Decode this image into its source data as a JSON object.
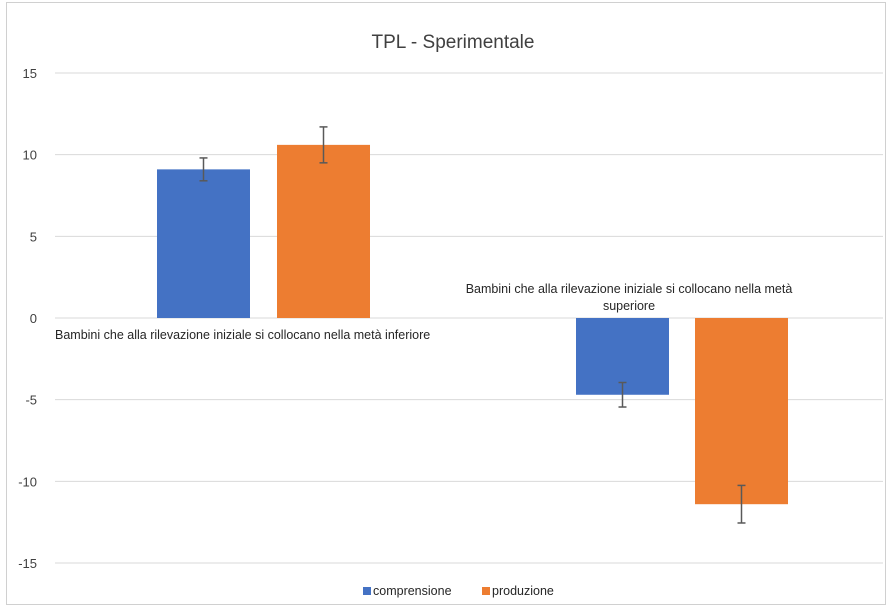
{
  "chart_data": {
    "type": "bar",
    "title": "TPL - Sperimentale",
    "xlabel": "",
    "ylabel": "",
    "ylim": [
      -15,
      15
    ],
    "y_ticks": [
      15,
      10,
      5,
      0,
      -5,
      -10,
      -15
    ],
    "grid": true,
    "legend_position": "bottom",
    "categories": [
      [
        "Bambini che alla rilevazione iniziale si collocano nella metà inferiore"
      ],
      [
        "Bambini che alla rilevazione iniziale si collocano nella metà",
        "superiore"
      ]
    ],
    "series": [
      {
        "name": "comprensione",
        "color": "#4472c4",
        "values": [
          9.1,
          -4.7
        ],
        "error": [
          [
            0.7,
            0.7
          ],
          [
            0.75,
            0.75
          ]
        ]
      },
      {
        "name": "produzione",
        "color": "#ed7d31",
        "values": [
          10.6,
          -11.4
        ],
        "error": [
          [
            1.1,
            1.1
          ],
          [
            1.15,
            1.15
          ]
        ]
      }
    ],
    "error_bar_color": "#595959",
    "grid_color": "#d9d9d9"
  }
}
